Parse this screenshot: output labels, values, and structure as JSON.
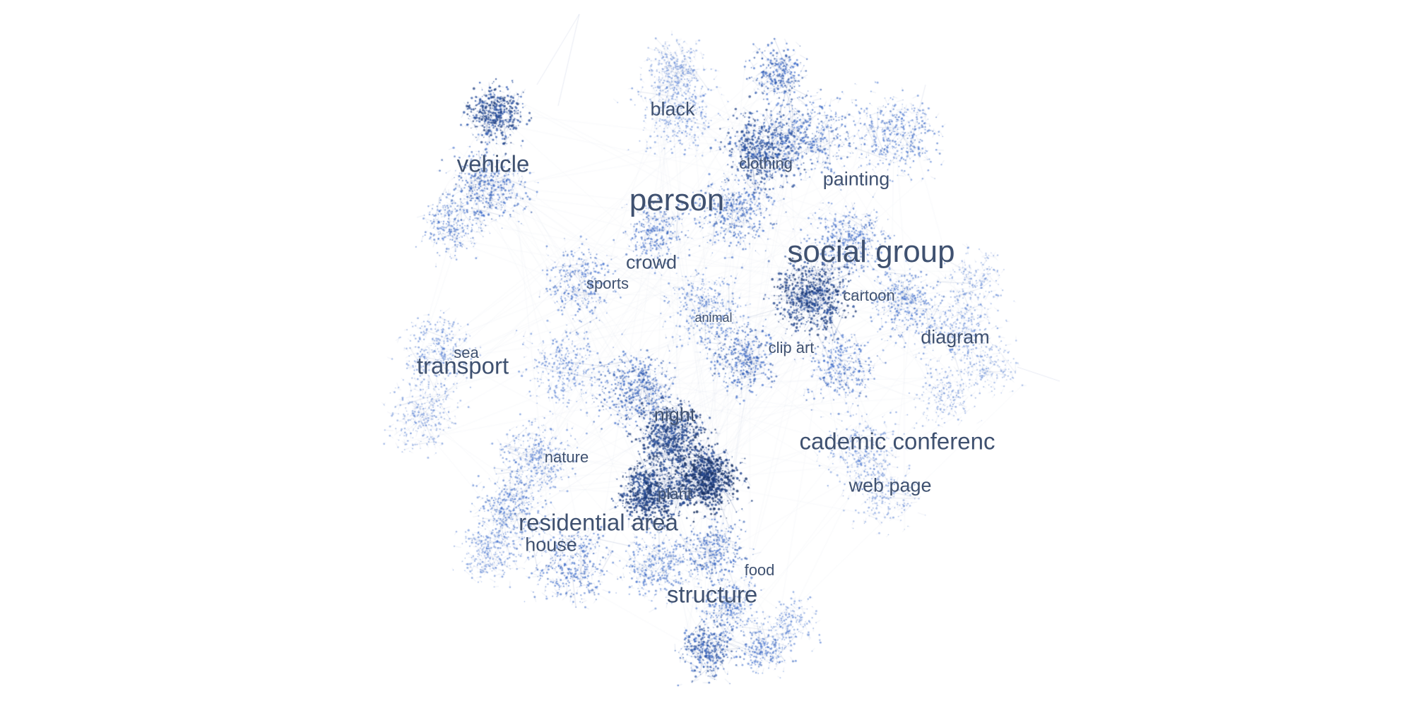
{
  "colors": {
    "background": "#ffffff",
    "label": "#3f5170",
    "edge": "#6f8fc8",
    "node_light": "#7b9bd6",
    "node_dark": "#0e1f4a"
  },
  "labels": [
    {
      "text": "black",
      "size": "m"
    },
    {
      "text": "vehicle",
      "size": "l"
    },
    {
      "text": "clothing",
      "size": "s"
    },
    {
      "text": "painting",
      "size": "m"
    },
    {
      "text": "person",
      "size": "xl"
    },
    {
      "text": "social group",
      "size": "xl"
    },
    {
      "text": "crowd",
      "size": "m"
    },
    {
      "text": "sports",
      "size": "s"
    },
    {
      "text": "cartoon",
      "size": "s"
    },
    {
      "text": "animal",
      "size": "xs"
    },
    {
      "text": "diagram",
      "size": "m"
    },
    {
      "text": "sea",
      "size": "s"
    },
    {
      "text": "clip art",
      "size": "s"
    },
    {
      "text": "transport",
      "size": "l"
    },
    {
      "text": "night",
      "size": "m"
    },
    {
      "text": "cademic conferenc",
      "size": "l"
    },
    {
      "text": "nature",
      "size": "s"
    },
    {
      "text": "web page",
      "size": "m"
    },
    {
      "text": "plant",
      "size": "s"
    },
    {
      "text": "residential area",
      "size": "l"
    },
    {
      "text": "house",
      "size": "m"
    },
    {
      "text": "food",
      "size": "s"
    },
    {
      "text": "structure",
      "size": "l"
    }
  ]
}
